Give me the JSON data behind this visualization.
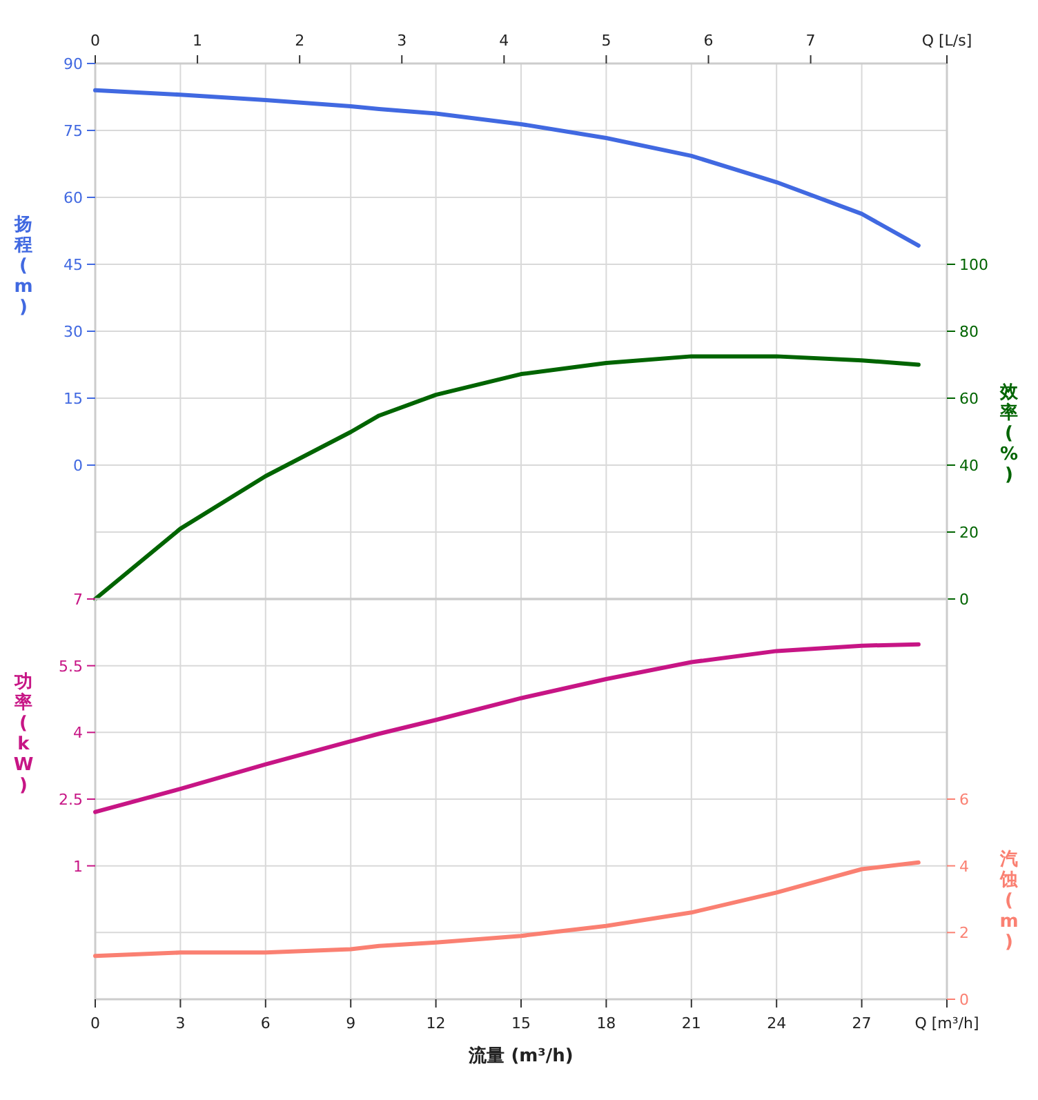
{
  "chart_data": [
    {
      "type": "line",
      "ylabel": "扬程 (m)",
      "y2label": "效率 (%)",
      "x": [
        0,
        3,
        6,
        9,
        10,
        12,
        15,
        18,
        21,
        24,
        27,
        29
      ],
      "xlim": [
        0,
        30
      ],
      "xticks": [
        0,
        3,
        6,
        9,
        12,
        15,
        18,
        21,
        24,
        27,
        30
      ],
      "tick_labels": "y",
      "x2lim": [
        0,
        8.333
      ],
      "x2ticks": [
        0,
        1,
        2,
        3,
        4,
        5,
        6,
        7,
        {
          "value": 8.333,
          "label": "Q [L/s]"
        }
      ],
      "ylim": [
        -30,
        90
      ],
      "yticks": [
        0,
        15,
        30,
        45,
        60,
        75,
        90
      ],
      "y2lim": [
        0,
        160
      ],
      "y2ticks": [
        0,
        20,
        40,
        60,
        80,
        100
      ],
      "grid": true,
      "marker": "none",
      "line_style": "solid",
      "series": [
        {
          "axis": "y",
          "color": "#4169e1",
          "values": [
            84,
            83,
            81.8,
            80.4,
            79.8,
            78.8,
            76.4,
            73.3,
            69.3,
            63.4,
            56.3,
            49.2
          ]
        },
        {
          "axis": "y2",
          "color": "#006400",
          "values": [
            0,
            21,
            36.7,
            49.9,
            54.8,
            61,
            67.2,
            70.5,
            72.5,
            72.5,
            71.3,
            70
          ]
        }
      ]
    },
    {
      "type": "line",
      "xlabel": "流量 (m³/h)",
      "ylabel": "功率 (kW)",
      "y2label": "汽蚀 (m)",
      "x": [
        0,
        3,
        6,
        9,
        10,
        12,
        15,
        18,
        21,
        24,
        27,
        29
      ],
      "xlim": [
        0,
        30
      ],
      "xticks": [
        0,
        3,
        6,
        9,
        12,
        15,
        18,
        21,
        24,
        27,
        {
          "value": 30,
          "label": "Q [m³/h]"
        }
      ],
      "ylim": [
        -2,
        7
      ],
      "yticks": [
        1,
        2.5,
        4,
        5.5,
        7
      ],
      "y2lim": [
        0,
        12
      ],
      "y2ticks": [
        0,
        2,
        4,
        6
      ],
      "grid": true,
      "marker": "none",
      "line_style": "solid",
      "series": [
        {
          "axis": "y",
          "color": "#c71585",
          "values": [
            2.21,
            2.73,
            3.28,
            3.8,
            3.97,
            4.28,
            4.77,
            5.2,
            5.58,
            5.83,
            5.95,
            5.98
          ]
        },
        {
          "axis": "y2",
          "color": "#fa8072",
          "values": [
            1.3,
            1.4,
            1.4,
            1.5,
            1.6,
            1.7,
            1.9,
            2.2,
            2.6,
            3.2,
            3.9,
            4.1
          ]
        }
      ]
    }
  ]
}
